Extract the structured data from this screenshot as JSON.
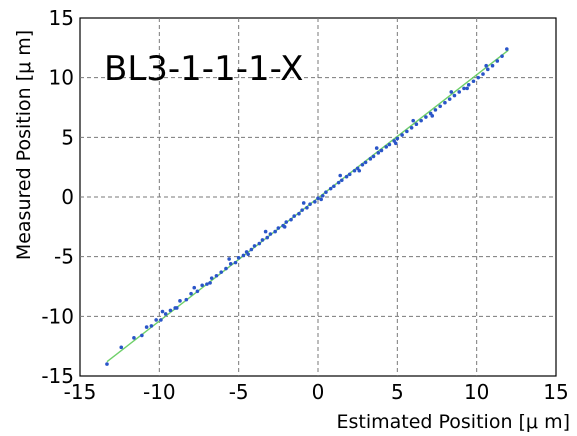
{
  "chart_data": {
    "type": "scatter",
    "annotation": "BL3-1-1-1-X",
    "xlabel": "Estimated Position [μ m]",
    "ylabel": "Measured Position [μ m]",
    "xlim": [
      -15,
      15
    ],
    "ylim": [
      -15,
      15
    ],
    "xticks": [
      "-15",
      "-10",
      "-5",
      "0",
      "5",
      "10",
      "15"
    ],
    "yticks": [
      "-15",
      "-10",
      "-5",
      "0",
      "5",
      "10",
      "15"
    ],
    "grid": true,
    "grid_style": "dashed",
    "marker_color": "#2a55c8",
    "fit_line_color": "#6fd06a",
    "fit_line": {
      "x": [
        -13.3,
        12
      ],
      "y": [
        -13.8,
        12.3
      ]
    },
    "series": [
      {
        "x": [
          -13.3,
          -12.4,
          -11.6,
          -11.1,
          -10.8,
          -10.5,
          -10.2,
          -9.9,
          -9.6,
          -9.3,
          -9.0,
          -8.7,
          -8.3,
          -8.0,
          -7.6,
          -7.3,
          -7.0,
          -6.7,
          -6.4,
          -6.1,
          -5.8,
          -5.5,
          -5.2,
          -5.0,
          -4.7,
          -4.5,
          -4.2,
          -4.0,
          -3.7,
          -3.5,
          -3.2,
          -3.0,
          -2.7,
          -2.5,
          -2.2,
          -2.0,
          -1.7,
          -1.5,
          -1.2,
          -1.0,
          -0.7,
          -0.5,
          -0.2,
          0.0,
          0.3,
          0.5,
          0.8,
          1.0,
          1.3,
          1.5,
          1.8,
          2.0,
          2.3,
          2.5,
          2.8,
          3.0,
          3.3,
          3.5,
          3.8,
          4.0,
          4.3,
          4.5,
          4.8,
          5.0,
          5.3,
          5.6,
          5.9,
          6.2,
          6.5,
          6.8,
          7.1,
          7.4,
          7.7,
          8.0,
          8.3,
          8.6,
          8.9,
          9.2,
          9.5,
          9.8,
          10.1,
          10.4,
          10.7,
          11.0,
          11.3,
          11.6,
          11.9,
          -9.8,
          -8.9,
          -7.8,
          -6.8,
          -5.6,
          -4.4,
          -3.3,
          -2.1,
          -0.9,
          0.2,
          1.4,
          2.6,
          3.7,
          4.9,
          6.0,
          7.2,
          8.4,
          9.4,
          10.6
        ],
        "y": [
          -14.0,
          -12.6,
          -11.8,
          -11.6,
          -10.9,
          -10.8,
          -10.3,
          -10.3,
          -9.8,
          -9.5,
          -9.3,
          -8.7,
          -8.6,
          -8.1,
          -7.9,
          -7.4,
          -7.3,
          -6.8,
          -6.6,
          -6.3,
          -6.0,
          -5.6,
          -5.5,
          -5.1,
          -4.9,
          -4.6,
          -4.4,
          -4.1,
          -3.9,
          -3.6,
          -3.4,
          -3.1,
          -2.9,
          -2.6,
          -2.4,
          -2.1,
          -1.9,
          -1.6,
          -1.4,
          -1.1,
          -0.9,
          -0.6,
          -0.4,
          -0.1,
          0.1,
          0.4,
          0.7,
          0.9,
          1.2,
          1.4,
          1.7,
          1.9,
          2.2,
          2.4,
          2.7,
          2.9,
          3.2,
          3.4,
          3.7,
          3.9,
          4.2,
          4.4,
          4.7,
          4.9,
          5.2,
          5.5,
          5.8,
          6.1,
          6.4,
          6.7,
          7.0,
          7.3,
          7.6,
          7.9,
          8.2,
          8.5,
          8.8,
          9.1,
          9.4,
          9.7,
          10.0,
          10.3,
          10.7,
          11.0,
          11.4,
          11.8,
          12.4,
          -9.6,
          -9.3,
          -7.6,
          -7.2,
          -5.2,
          -4.8,
          -2.9,
          -2.5,
          -0.5,
          -0.2,
          1.8,
          2.2,
          4.1,
          4.5,
          6.4,
          6.8,
          8.8,
          9.1,
          11.0
        ]
      }
    ]
  }
}
